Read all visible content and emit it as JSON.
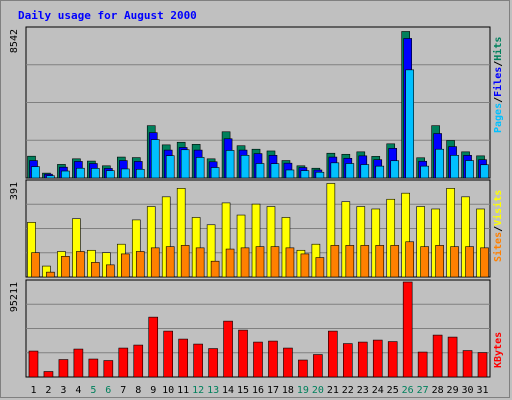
{
  "title": "Daily usage for August 2000",
  "colors": {
    "hits": "#00805c",
    "files": "#0000ff",
    "pages": "#00c0ff",
    "visits": "#ffff00",
    "sites": "#ff8000",
    "kbytes": "#ff0000",
    "weekday_label": "#000000",
    "weekend_label": "#00805c"
  },
  "chart_data": [
    {
      "type": "bar",
      "panel": "top",
      "ymax_label": "8542",
      "ylim": [
        0,
        8542
      ],
      "categories": [
        "1",
        "2",
        "3",
        "4",
        "5",
        "6",
        "7",
        "8",
        "9",
        "10",
        "11",
        "12",
        "13",
        "14",
        "15",
        "16",
        "17",
        "18",
        "19",
        "20",
        "21",
        "22",
        "23",
        "24",
        "25",
        "26",
        "27",
        "28",
        "29",
        "30",
        "31"
      ],
      "legend": [
        "Pages",
        "/",
        "Files",
        "/",
        "Hits"
      ],
      "series": [
        {
          "name": "Hits",
          "values": [
            1250,
            280,
            780,
            1100,
            970,
            700,
            1200,
            1170,
            3000,
            1900,
            2050,
            1930,
            1100,
            2650,
            1850,
            1650,
            1550,
            1000,
            700,
            560,
            1420,
            1360,
            1500,
            1240,
            1960,
            8400,
            1160,
            3000,
            2150,
            1500,
            1270
          ]
        },
        {
          "name": "Files",
          "values": [
            1000,
            220,
            620,
            950,
            830,
            550,
            1000,
            950,
            2600,
            1600,
            1750,
            1600,
            930,
            2250,
            1600,
            1400,
            1300,
            850,
            600,
            460,
            1200,
            1130,
            1270,
            1050,
            1700,
            8000,
            960,
            2550,
            1800,
            1300,
            1050
          ]
        },
        {
          "name": "Pages",
          "values": [
            650,
            130,
            400,
            560,
            550,
            420,
            520,
            500,
            2200,
            1280,
            1620,
            1180,
            600,
            1580,
            1300,
            830,
            820,
            460,
            420,
            330,
            870,
            830,
            770,
            680,
            990,
            6200,
            680,
            1650,
            1300,
            1000,
            760
          ]
        }
      ],
      "xlabel": "",
      "ylabel": ""
    },
    {
      "type": "bar",
      "panel": "middle",
      "ymax_label": "391",
      "ylim": [
        0,
        391
      ],
      "categories": [
        "1",
        "2",
        "3",
        "4",
        "5",
        "6",
        "7",
        "8",
        "9",
        "10",
        "11",
        "12",
        "13",
        "14",
        "15",
        "16",
        "17",
        "18",
        "19",
        "20",
        "21",
        "22",
        "23",
        "24",
        "25",
        "26",
        "27",
        "28",
        "29",
        "30",
        "31"
      ],
      "legend": [
        "Sites",
        "/",
        "Visits"
      ],
      "series": [
        {
          "name": "Visits",
          "values": [
            225,
            45,
            105,
            240,
            110,
            100,
            135,
            235,
            290,
            330,
            365,
            245,
            215,
            305,
            255,
            300,
            290,
            245,
            110,
            135,
            385,
            310,
            290,
            280,
            320,
            345,
            290,
            280,
            365,
            330,
            280
          ]
        },
        {
          "name": "Sites",
          "values": [
            100,
            20,
            85,
            105,
            60,
            50,
            95,
            105,
            120,
            125,
            130,
            120,
            65,
            115,
            120,
            125,
            125,
            120,
            95,
            80,
            130,
            130,
            130,
            130,
            130,
            145,
            125,
            130,
            125,
            125,
            120
          ]
        }
      ],
      "xlabel": "",
      "ylabel": ""
    },
    {
      "type": "bar",
      "panel": "bottom",
      "ymax_label": "95211",
      "ylim": [
        0,
        95211
      ],
      "categories": [
        "1",
        "2",
        "3",
        "4",
        "5",
        "6",
        "7",
        "8",
        "9",
        "10",
        "11",
        "12",
        "13",
        "14",
        "15",
        "16",
        "17",
        "18",
        "19",
        "20",
        "21",
        "22",
        "23",
        "24",
        "25",
        "26",
        "27",
        "28",
        "29",
        "30",
        "31"
      ],
      "legend": [
        "KBytes"
      ],
      "series": [
        {
          "name": "KBytes",
          "values": [
            26000,
            5500,
            17500,
            28000,
            18000,
            16500,
            29000,
            32000,
            60000,
            46000,
            38000,
            33000,
            28500,
            56000,
            47000,
            35000,
            36000,
            29000,
            17000,
            22500,
            46000,
            33500,
            35000,
            37000,
            35500,
            95211,
            25000,
            42000,
            40000,
            26500,
            24500
          ]
        }
      ],
      "xlabel": "",
      "ylabel": ""
    }
  ],
  "weekend_days": [
    "5",
    "6",
    "12",
    "13",
    "19",
    "20",
    "26",
    "27"
  ]
}
